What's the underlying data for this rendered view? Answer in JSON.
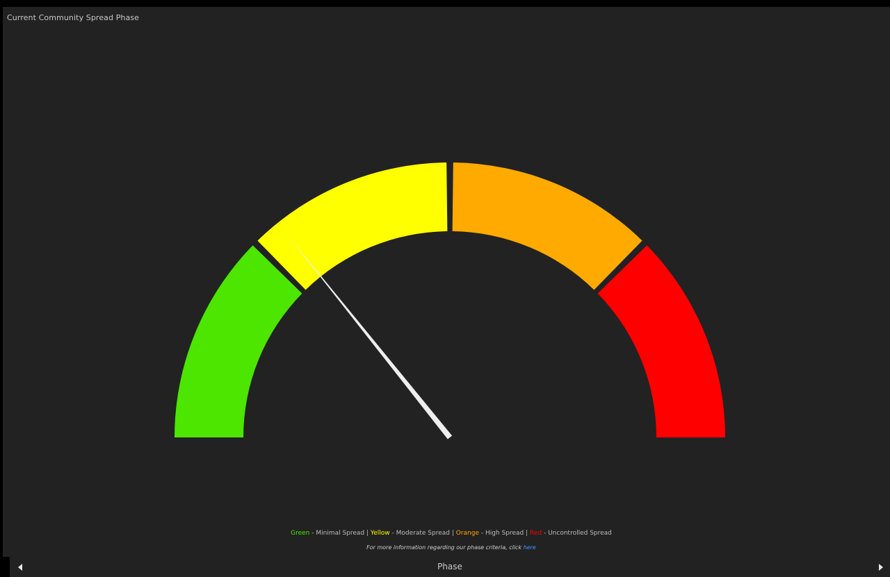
{
  "panel": {
    "title": "Current Community Spread Phase"
  },
  "gauge": {
    "min": 0,
    "max": 100,
    "value": 28.5,
    "needle_color": "#eeeeee",
    "bands": [
      {
        "name": "Green",
        "from": 0,
        "to": 25,
        "color": "#4ce600"
      },
      {
        "name": "Yellow",
        "from": 25,
        "to": 50,
        "color": "#ffff00"
      },
      {
        "name": "Orange",
        "from": 50,
        "to": 75,
        "color": "#ffaa00"
      },
      {
        "name": "Red",
        "from": 75,
        "to": 100,
        "color": "#ff0000"
      }
    ]
  },
  "legend": {
    "green_label": "Green",
    "green_text": " - Minimal Spread ",
    "yellow_label": "Yellow",
    "yellow_text": " - Moderate Spread ",
    "orange_label": "Orange",
    "orange_text": " - High Spread ",
    "red_label": "Red",
    "red_text": " - Uncontrolled Spread",
    "separator": "|"
  },
  "info": {
    "text": "For more information regarding our phase criteria, click ",
    "link_text": "here"
  },
  "footer": {
    "title": "Phase",
    "prev_icon": "caret-left-icon",
    "next_icon": "caret-right-icon"
  }
}
